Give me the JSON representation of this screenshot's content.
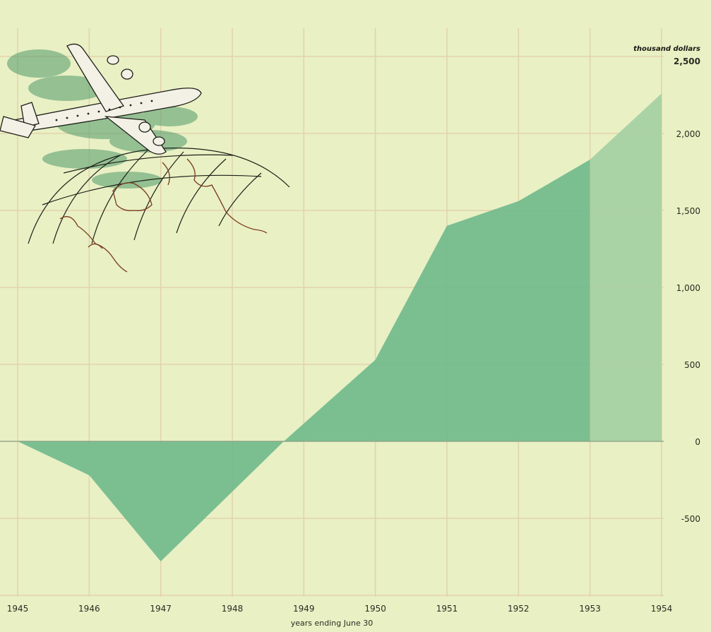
{
  "chart_data": {
    "type": "area",
    "title": "",
    "xlabel": "years ending June 30",
    "ylabel": "",
    "y_unit_label": "thousand dollars",
    "x_ticks": [
      "1945",
      "1946",
      "1947",
      "1948",
      "1949",
      "1950",
      "1951",
      "1952",
      "1953",
      "1954"
    ],
    "y_ticks": [
      "-500",
      "0",
      "500",
      "1,000",
      "1,500",
      "2,000",
      "2,500"
    ],
    "ylim": [
      -1000,
      2500
    ],
    "grid": true,
    "series": [
      {
        "x": [
          1945,
          1946,
          1947,
          1948.72,
          1950,
          1951,
          1952,
          1953
        ],
        "values": [
          0,
          -220,
          -780,
          0,
          530,
          1400,
          1560,
          1830
        ],
        "color": "#6fb98c",
        "style": "actual"
      },
      {
        "x": [
          1953,
          1954
        ],
        "values": [
          1830,
          2260
        ],
        "color": "#a3cfa2",
        "style": "estimate"
      }
    ],
    "colors": {
      "background": "#e9f0c4",
      "grid": "#e2d2ac",
      "zero_line": "#8aa488"
    }
  },
  "illustration": {
    "description_icon": "airplane-over-globe-icon"
  }
}
